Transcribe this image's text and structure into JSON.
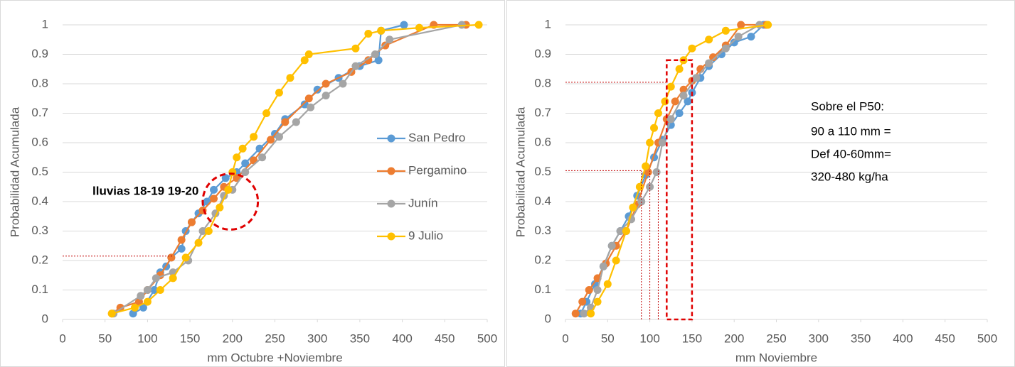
{
  "chart_data": [
    {
      "type": "line",
      "x_label": "mm Octubre +Noviembre",
      "y_label": "Probabilidad Acumulada",
      "xlim": [
        0,
        500
      ],
      "xticks": [
        0,
        50,
        100,
        150,
        200,
        250,
        300,
        350,
        400,
        450,
        500
      ],
      "ylim": [
        0,
        1
      ],
      "yticks": [
        0,
        0.1,
        0.2,
        0.3,
        0.4,
        0.5,
        0.6,
        0.7,
        0.8,
        0.9,
        1
      ],
      "grid": true,
      "legend": "right",
      "annotations": [
        "lluvias 18-19 19-20"
      ],
      "reference_lines": [
        {
          "x": [
            0,
            130
          ],
          "y": [
            0.215,
            0.215
          ]
        }
      ],
      "highlight_ellipse": {
        "x": [
          165,
          230
        ],
        "y": [
          0.305,
          0.495
        ]
      },
      "series": [
        {
          "name": "San Pedro",
          "color": "#5b9bd5",
          "x": [
            83,
            95,
            108,
            115,
            122,
            128,
            140,
            145,
            152,
            160,
            170,
            178,
            192,
            205,
            215,
            232,
            250,
            262,
            285,
            300,
            325,
            350,
            372,
            375,
            402
          ],
          "values": [
            0.02,
            0.04,
            0.1,
            0.16,
            0.18,
            0.21,
            0.24,
            0.3,
            0.33,
            0.36,
            0.4,
            0.44,
            0.48,
            0.5,
            0.53,
            0.58,
            0.63,
            0.68,
            0.73,
            0.78,
            0.82,
            0.86,
            0.88,
            0.98,
            1
          ]
        },
        {
          "name": "Pergamino",
          "color": "#ed7d31",
          "x": [
            58,
            68,
            90,
            100,
            115,
            128,
            140,
            152,
            165,
            178,
            190,
            205,
            225,
            245,
            262,
            290,
            310,
            340,
            360,
            380,
            437,
            475
          ],
          "values": [
            0.02,
            0.04,
            0.06,
            0.1,
            0.15,
            0.21,
            0.27,
            0.33,
            0.37,
            0.41,
            0.45,
            0.48,
            0.54,
            0.61,
            0.67,
            0.75,
            0.8,
            0.84,
            0.88,
            0.93,
            1,
            1
          ]
        },
        {
          "name": "Junín",
          "color": "#a5a5a5",
          "x": [
            60,
            92,
            100,
            110,
            130,
            148,
            165,
            180,
            190,
            200,
            215,
            235,
            255,
            275,
            292,
            310,
            330,
            345,
            368,
            385,
            470
          ],
          "values": [
            0.02,
            0.08,
            0.1,
            0.14,
            0.16,
            0.2,
            0.3,
            0.36,
            0.42,
            0.44,
            0.5,
            0.55,
            0.62,
            0.67,
            0.72,
            0.76,
            0.8,
            0.86,
            0.9,
            0.95,
            1
          ]
        },
        {
          "name": "9 Julio",
          "color": "#ffc000",
          "x": [
            58,
            85,
            100,
            115,
            130,
            145,
            160,
            172,
            185,
            195,
            200,
            205,
            212,
            225,
            240,
            255,
            268,
            285,
            290,
            345,
            360,
            375,
            420,
            490
          ],
          "values": [
            0.02,
            0.04,
            0.06,
            0.1,
            0.14,
            0.21,
            0.26,
            0.3,
            0.38,
            0.44,
            0.5,
            0.55,
            0.58,
            0.62,
            0.7,
            0.77,
            0.82,
            0.88,
            0.9,
            0.92,
            0.97,
            0.98,
            0.99,
            1
          ]
        }
      ]
    },
    {
      "type": "line",
      "x_label": "mm Noviembre",
      "y_label": "Probabilidad Acumulada",
      "xlim": [
        0,
        500
      ],
      "xticks": [
        0,
        50,
        100,
        150,
        200,
        250,
        300,
        350,
        400,
        450,
        500
      ],
      "ylim": [
        0,
        1
      ],
      "yticks": [
        0,
        0.1,
        0.2,
        0.3,
        0.4,
        0.5,
        0.6,
        0.7,
        0.8,
        0.9,
        1
      ],
      "grid": true,
      "annotations": [
        "Sobre el P50:",
        "90 a 110 mm =",
        "Def 40-60mm=",
        "320-480 kg/ha"
      ],
      "reference_lines": [
        {
          "x": [
            0,
            120
          ],
          "y": [
            0.805,
            0.805
          ]
        },
        {
          "x": [
            0,
            90
          ],
          "y": [
            0.505,
            0.505
          ]
        },
        {
          "x": [
            90,
            90
          ],
          "y": [
            0,
            0.505
          ]
        },
        {
          "x": [
            100,
            100
          ],
          "y": [
            0,
            0.505
          ]
        },
        {
          "x": [
            110,
            110
          ],
          "y": [
            0,
            0.505
          ]
        }
      ],
      "highlight_box": {
        "x": [
          120,
          150
        ],
        "y": [
          0,
          0.88
        ]
      },
      "series": [
        {
          "name": "San Pedro",
          "color": "#5b9bd5",
          "x": [
            18,
            25,
            35,
            45,
            55,
            65,
            75,
            85,
            95,
            105,
            115,
            125,
            135,
            145,
            150,
            160,
            170,
            185,
            200,
            220,
            235
          ],
          "values": [
            0.02,
            0.06,
            0.12,
            0.18,
            0.25,
            0.3,
            0.35,
            0.42,
            0.49,
            0.55,
            0.61,
            0.66,
            0.7,
            0.74,
            0.77,
            0.82,
            0.86,
            0.9,
            0.94,
            0.96,
            1
          ]
        },
        {
          "name": "Pergamino",
          "color": "#ed7d31",
          "x": [
            12,
            20,
            28,
            38,
            48,
            60,
            72,
            85,
            98,
            110,
            120,
            130,
            140,
            150,
            160,
            175,
            190,
            208,
            238
          ],
          "values": [
            0.02,
            0.06,
            0.1,
            0.14,
            0.19,
            0.25,
            0.3,
            0.39,
            0.5,
            0.6,
            0.68,
            0.74,
            0.78,
            0.81,
            0.85,
            0.89,
            0.93,
            1,
            1
          ]
        },
        {
          "name": "Junín",
          "color": "#a5a5a5",
          "x": [
            22,
            30,
            38,
            45,
            55,
            65,
            78,
            90,
            100,
            108,
            115,
            125,
            140,
            155,
            170,
            190,
            205,
            230
          ],
          "values": [
            0.02,
            0.04,
            0.1,
            0.18,
            0.25,
            0.3,
            0.34,
            0.4,
            0.45,
            0.5,
            0.6,
            0.68,
            0.76,
            0.82,
            0.87,
            0.92,
            0.96,
            1
          ]
        },
        {
          "name": "9 Julio",
          "color": "#ffc000",
          "x": [
            30,
            38,
            50,
            60,
            72,
            80,
            88,
            95,
            100,
            105,
            110,
            118,
            125,
            135,
            140,
            150,
            170,
            190,
            240
          ],
          "values": [
            0.02,
            0.06,
            0.12,
            0.2,
            0.3,
            0.38,
            0.45,
            0.52,
            0.6,
            0.65,
            0.7,
            0.74,
            0.79,
            0.85,
            0.88,
            0.92,
            0.95,
            0.98,
            1
          ]
        }
      ]
    }
  ]
}
